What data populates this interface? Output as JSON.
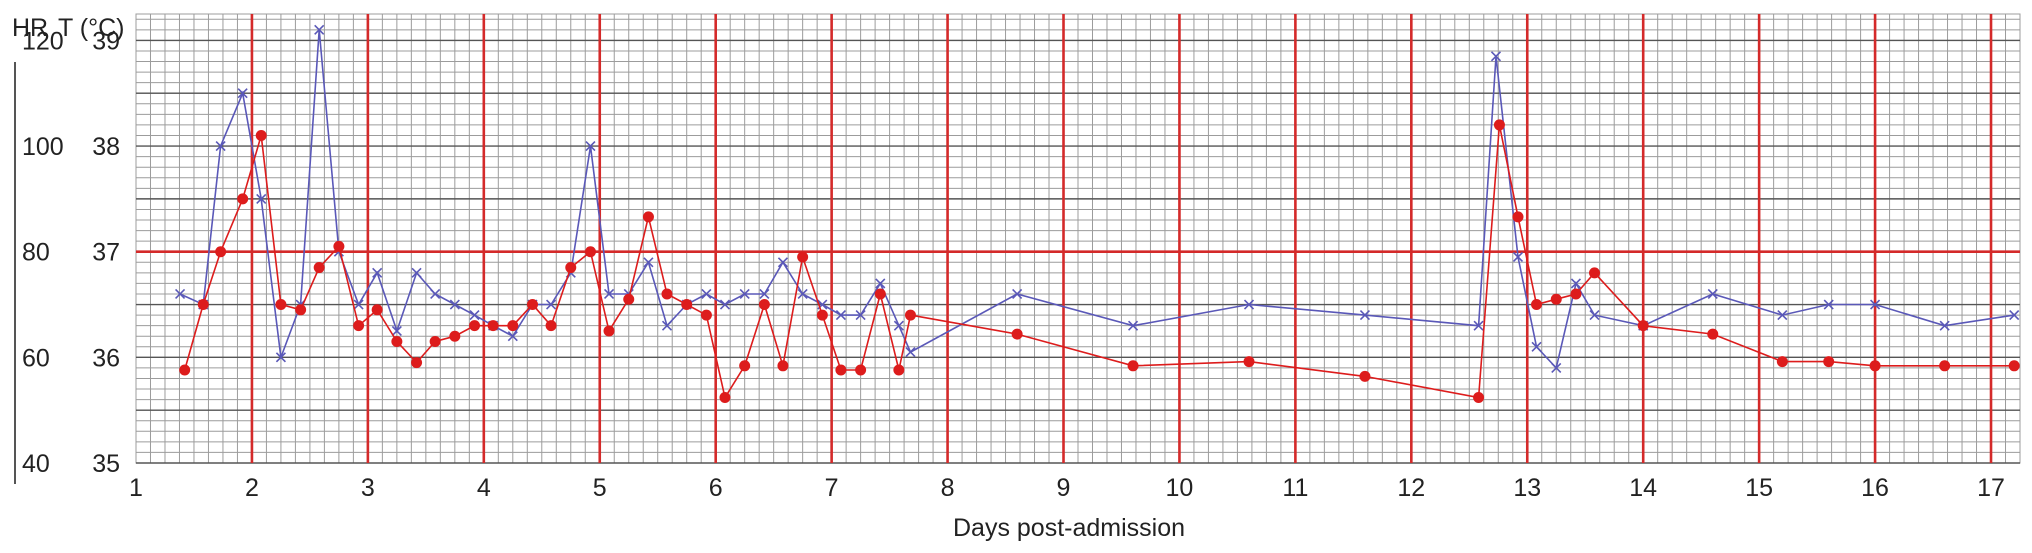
{
  "chart_data": {
    "type": "line",
    "xlabel": "Days post-admission",
    "ylabel_left": "HR",
    "ylabel_right": "T (°C)",
    "x_ticks": [
      "1",
      "2",
      "3",
      "4",
      "5",
      "6",
      "7",
      "8",
      "9",
      "10",
      "11",
      "12",
      "13",
      "14",
      "15",
      "16",
      "17"
    ],
    "hr_ticks": [
      "40",
      "60",
      "80",
      "100",
      "120"
    ],
    "t_ticks": [
      "35",
      "36",
      "37",
      "38",
      "39"
    ],
    "xlim": [
      1,
      17.25
    ],
    "hr_lim": [
      40,
      125
    ],
    "t_lim": [
      35,
      39.25
    ],
    "grid": true,
    "colors": {
      "hr": "#5a58b8",
      "temp": "#dd1c1c",
      "grid_minor": "#9c9c9c",
      "grid_major": "#d42a2a",
      "grid_medium": "#555555",
      "axis_text": "#222222"
    },
    "series": [
      {
        "key": "hr",
        "marker": "x",
        "x": [
          1.38,
          1.58,
          1.73,
          1.92,
          2.08,
          2.25,
          2.42,
          2.58,
          2.75,
          2.92,
          3.08,
          3.25,
          3.42,
          3.58,
          3.75,
          3.92,
          4.08,
          4.25,
          4.42,
          4.58,
          4.75,
          4.92,
          5.08,
          5.25,
          5.42,
          5.58,
          5.75,
          5.92,
          6.08,
          6.25,
          6.42,
          6.58,
          6.75,
          6.92,
          7.08,
          7.25,
          7.42,
          7.58,
          7.68,
          8.6,
          9.6,
          10.6,
          11.6,
          12.58,
          12.73,
          12.92,
          13.08,
          13.25,
          13.42,
          13.58,
          14.0,
          14.6,
          15.2,
          15.6,
          16.0,
          16.6,
          17.2
        ],
        "values": [
          72,
          70,
          100,
          110,
          90,
          60,
          70,
          122,
          80,
          70,
          76,
          65,
          76,
          72,
          70,
          68,
          66,
          64,
          70,
          70,
          76,
          100,
          72,
          72,
          78,
          66,
          70,
          72,
          70,
          72,
          72,
          78,
          72,
          70,
          68,
          68,
          74,
          66,
          61,
          72,
          66,
          70,
          68,
          66,
          117,
          79,
          62,
          58,
          74,
          68,
          66,
          72,
          68,
          70,
          70,
          66,
          68
        ]
      },
      {
        "key": "temp",
        "marker": "dot",
        "x": [
          1.42,
          1.58,
          1.73,
          1.92,
          2.08,
          2.25,
          2.42,
          2.58,
          2.75,
          2.92,
          3.08,
          3.25,
          3.42,
          3.58,
          3.75,
          3.92,
          4.08,
          4.25,
          4.42,
          4.58,
          4.75,
          4.92,
          5.08,
          5.25,
          5.42,
          5.58,
          5.75,
          5.92,
          6.08,
          6.25,
          6.42,
          6.58,
          6.75,
          6.92,
          7.08,
          7.25,
          7.42,
          7.58,
          7.68,
          8.6,
          9.6,
          10.6,
          11.6,
          12.58,
          12.76,
          12.92,
          13.08,
          13.25,
          13.42,
          13.58,
          14.0,
          14.6,
          15.2,
          15.6,
          16.0,
          16.6,
          17.2
        ],
        "values": [
          35.88,
          36.5,
          37.0,
          37.5,
          38.1,
          36.5,
          36.45,
          36.85,
          37.05,
          36.3,
          36.45,
          36.15,
          35.95,
          36.15,
          36.2,
          36.3,
          36.3,
          36.3,
          36.5,
          36.3,
          36.85,
          37.0,
          36.25,
          36.55,
          37.33,
          36.6,
          36.5,
          36.4,
          35.62,
          35.92,
          36.5,
          35.92,
          36.95,
          36.4,
          35.88,
          35.88,
          36.6,
          35.88,
          36.4,
          36.22,
          35.92,
          35.96,
          35.82,
          35.62,
          38.2,
          37.33,
          36.5,
          36.55,
          36.6,
          36.8,
          36.3,
          36.22,
          35.96,
          35.96,
          35.92,
          35.92,
          35.92
        ]
      }
    ]
  }
}
